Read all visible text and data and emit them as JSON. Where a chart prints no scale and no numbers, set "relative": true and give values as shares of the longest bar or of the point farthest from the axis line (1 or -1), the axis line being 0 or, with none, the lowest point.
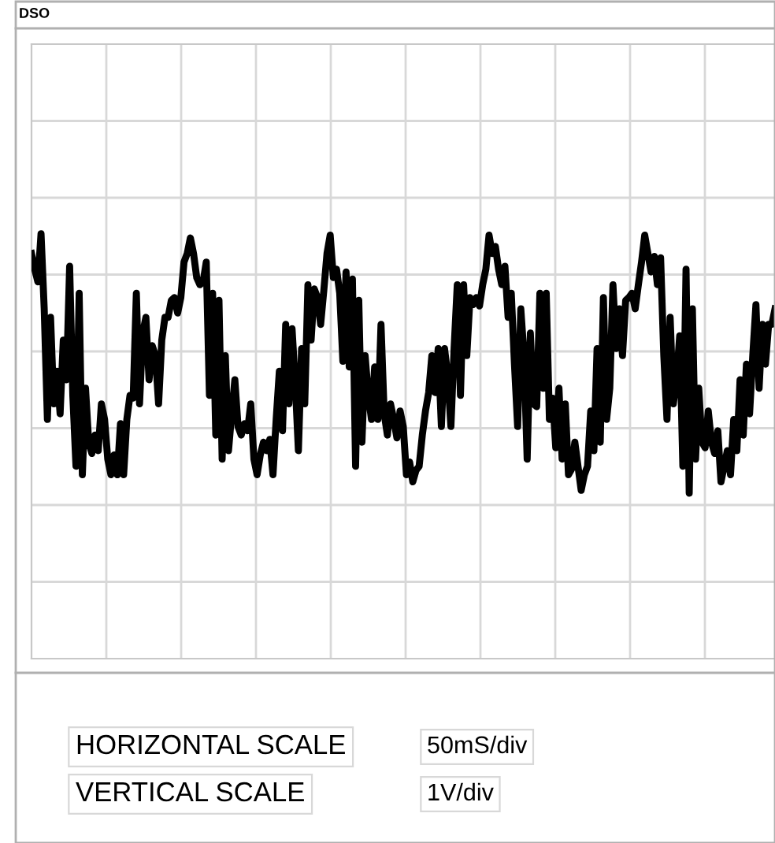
{
  "chart_data": {
    "type": "line",
    "title": "DSO",
    "relative": true,
    "grid": true,
    "legend": false,
    "marker": "none",
    "line_style": "solid",
    "annotations": [
      "HORIZONTAL SCALE",
      "50mS/div",
      "VERTICAL SCALE",
      "1V/div"
    ],
    "categories": [
      null,
      null,
      null,
      null,
      null,
      null,
      null,
      null,
      null,
      null,
      null,
      null,
      null,
      null,
      null,
      null,
      null,
      null,
      null,
      null,
      null,
      null,
      null,
      null,
      null,
      null,
      null,
      null,
      null,
      null,
      null,
      null,
      null,
      null,
      null,
      null,
      null,
      null,
      null,
      null,
      null,
      null,
      null,
      null,
      null,
      null,
      null,
      null,
      null,
      null,
      null,
      null,
      null,
      null,
      null,
      null,
      null,
      null,
      null,
      null,
      null,
      null,
      null,
      null,
      null,
      null,
      null,
      null,
      null,
      null,
      null,
      null,
      null,
      null,
      null,
      null,
      null,
      null,
      null,
      null,
      null,
      null,
      null,
      null,
      null,
      null,
      null,
      null,
      null,
      null,
      null,
      null,
      null,
      null,
      null,
      null,
      null,
      null,
      null,
      null,
      null,
      null,
      null,
      null,
      null,
      null,
      null,
      null,
      null,
      null,
      null,
      null,
      null,
      null,
      null,
      null,
      null,
      null,
      null,
      null,
      null,
      null,
      null,
      null,
      null,
      null,
      null,
      null,
      null,
      null,
      null,
      null,
      null,
      null,
      null,
      null,
      null,
      null,
      null,
      null,
      null,
      null,
      null,
      null,
      null,
      null,
      null,
      null,
      null,
      null,
      null,
      null,
      null,
      null,
      null,
      null,
      null,
      null,
      null,
      null,
      null,
      null,
      null,
      null,
      null,
      null,
      null,
      null,
      null,
      null,
      null,
      null,
      null,
      null,
      null,
      null,
      null,
      null,
      null,
      null,
      null,
      null,
      null,
      null,
      null,
      null,
      null,
      null,
      null,
      null,
      null,
      null,
      null,
      null,
      null,
      null,
      null,
      null,
      null,
      null,
      null,
      null,
      null,
      null,
      null,
      null,
      null,
      null,
      null,
      null,
      null,
      null,
      null,
      null,
      null,
      null,
      null,
      null,
      null,
      null,
      null,
      null,
      null,
      null,
      null,
      null,
      null,
      null,
      null,
      null,
      null,
      null,
      null,
      null,
      null
    ],
    "series": [
      {
        "color": "#000000",
        "values": [
          0.69,
          0.58,
          0.49,
          0.83,
          0.3,
          -0.48,
          0.24,
          -0.37,
          -0.14,
          -0.44,
          0.08,
          -0.2,
          0.6,
          -0.31,
          -0.81,
          0.41,
          -0.87,
          -0.26,
          -0.64,
          -0.72,
          -0.59,
          -0.7,
          -0.37,
          -0.48,
          -0.76,
          -0.87,
          -0.73,
          -0.87,
          -0.51,
          -0.87,
          -0.48,
          -0.31,
          -0.33,
          0.41,
          -0.37,
          0.13,
          0.24,
          -0.2,
          0.04,
          -0.03,
          -0.37,
          0.08,
          0.24,
          0.24,
          0.36,
          0.38,
          0.27,
          0.38,
          0.63,
          0.69,
          0.8,
          0.69,
          0.52,
          0.47,
          0.49,
          0.63,
          -0.31,
          0.41,
          -0.59,
          0.36,
          -0.76,
          -0.03,
          -0.7,
          -0.44,
          -0.2,
          -0.53,
          -0.59,
          -0.51,
          -0.56,
          -0.37,
          -0.76,
          -0.87,
          -0.73,
          -0.64,
          -0.7,
          -0.62,
          -0.87,
          -0.48,
          -0.14,
          -0.56,
          0.19,
          -0.37,
          0.16,
          -0.22,
          -0.7,
          0.02,
          -0.37,
          0.47,
          0.08,
          0.44,
          0.38,
          0.19,
          0.43,
          0.69,
          0.82,
          0.52,
          0.58,
          0.41,
          -0.07,
          0.56,
          -0.11,
          0.51,
          -0.81,
          0.36,
          -0.64,
          -0.03,
          -0.31,
          -0.48,
          -0.11,
          -0.48,
          0.19,
          -0.44,
          -0.59,
          -0.37,
          -0.48,
          -0.61,
          -0.42,
          -0.53,
          -0.87,
          -0.78,
          -0.92,
          -0.84,
          -0.81,
          -0.59,
          -0.42,
          -0.29,
          -0.03,
          -0.29,
          0.02,
          -0.53,
          0.02,
          -0.17,
          -0.53,
          0.02,
          0.47,
          -0.31,
          0.47,
          -0.03,
          0.38,
          0.33,
          0.38,
          0.32,
          0.47,
          0.58,
          0.82,
          0.69,
          0.74,
          0.58,
          0.47,
          0.6,
          0.24,
          0.41,
          -0.09,
          -0.53,
          0.3,
          -0.03,
          -0.76,
          0.13,
          -0.37,
          -0.39,
          0.41,
          -0.26,
          0.41,
          -0.48,
          -0.33,
          -0.68,
          -0.26,
          -0.76,
          -0.37,
          -0.87,
          -0.83,
          -0.64,
          -0.81,
          -0.98,
          -0.87,
          -0.81,
          -0.42,
          -0.7,
          0.02,
          -0.64,
          0.38,
          -0.48,
          -0.26,
          0.47,
          0.02,
          0.3,
          -0.03,
          0.36,
          0.38,
          0.41,
          0.3,
          0.47,
          0.63,
          0.82,
          0.69,
          0.56,
          0.67,
          0.47,
          0.66,
          -0.03,
          -0.48,
          0.24,
          -0.37,
          -0.2,
          0.11,
          -0.81,
          0.58,
          -1,
          0.3,
          -0.76,
          -0.26,
          -0.64,
          -0.68,
          -0.42,
          -0.64,
          -0.72,
          -0.56,
          -0.92,
          -0.81,
          -0.7,
          -0.87,
          -0.48,
          -0.7,
          -0.2,
          -0.59,
          -0.09,
          -0.44,
          -0.03,
          0.33,
          -0.26,
          0.19,
          -0.09,
          0.19,
          0.19,
          0.3
        ]
      }
    ]
  }
}
